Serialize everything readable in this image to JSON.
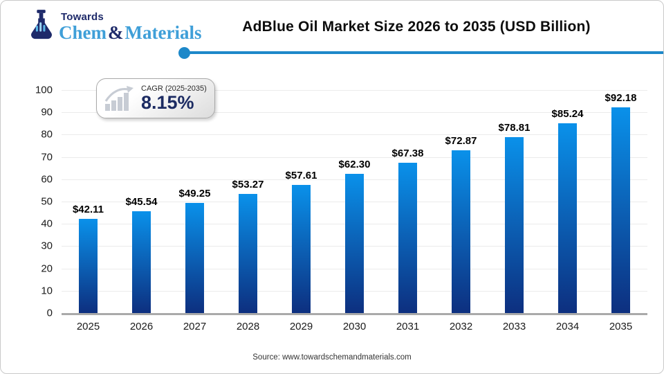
{
  "logo": {
    "line1": "Towards",
    "line2_part1": "Chem",
    "line2_amp": "&",
    "line2_part2": "Materials",
    "navy_color": "#1e2a6a",
    "light_blue_color": "#3f9fd8",
    "icon": "flask-icon"
  },
  "header": {
    "title": "AdBlue Oil Market Size 2026 to 2035 (USD Billion)",
    "underline_color": "#1d88c9"
  },
  "cagr_badge": {
    "icon": "growth-chart-icon",
    "label": "CAGR (2025-2035)",
    "value": "8.15%",
    "value_color": "#1c2b62"
  },
  "source": {
    "text": "Source: www.towardschemandmaterials.com"
  },
  "chart_data": {
    "type": "bar",
    "title": "AdBlue Oil Market Size 2026 to 2035 (USD Billion)",
    "categories": [
      "2025",
      "2026",
      "2027",
      "2028",
      "2029",
      "2030",
      "2031",
      "2032",
      "2033",
      "2034",
      "2035"
    ],
    "values": [
      42.11,
      45.54,
      49.25,
      53.27,
      57.61,
      62.3,
      67.38,
      72.87,
      78.81,
      85.24,
      92.18
    ],
    "labels": [
      "$42.11",
      "$45.54",
      "$49.25",
      "$53.27",
      "$57.61",
      "$62.30",
      "$67.38",
      "$72.87",
      "$78.81",
      "$85.24",
      "$92.18"
    ],
    "xlabel": "",
    "ylabel": "",
    "ylim": [
      0,
      100
    ],
    "ytick_step": 10,
    "grid": true,
    "legend": false,
    "bar_gradient_top": "#0a91ea",
    "bar_gradient_bottom": "#0d2f7f",
    "axis_line_color": "#a9a9a9",
    "gridline_color": "#ebebeb"
  }
}
